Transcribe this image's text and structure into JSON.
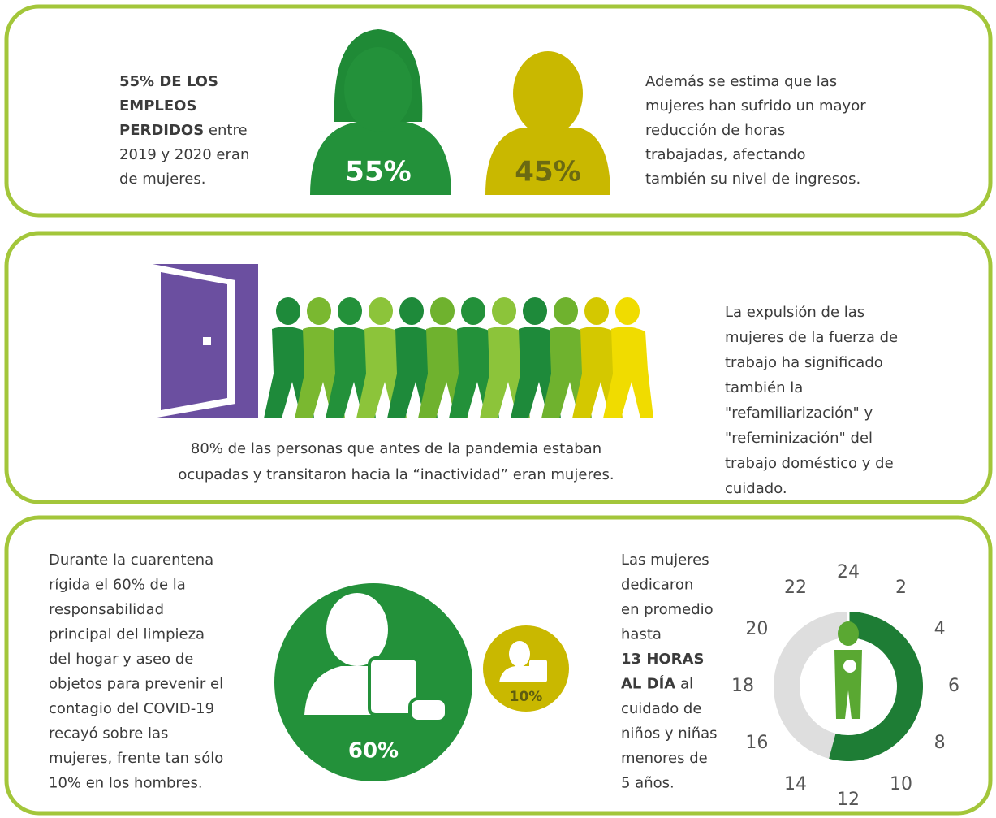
{
  "panel1": {
    "left_text": [
      [
        {
          "bold": "55% DE LOS"
        }
      ],
      [
        {
          "bold": "EMPLEOS"
        }
      ],
      [
        {
          "bold": "PERDIDOS"
        },
        " entre"
      ],
      [
        "2019 y 2020 eran"
      ],
      [
        "de mujeres."
      ]
    ],
    "women_label": "55%",
    "men_label": "45%",
    "right_text": [
      [
        "Además se estima que las"
      ],
      [
        "mujeres han sufrido un mayor"
      ],
      [
        "reducción de horas"
      ],
      [
        "trabajadas, afectando"
      ],
      [
        "también su nivel de ingresos."
      ]
    ]
  },
  "panel2": {
    "caption": [
      [
        "80% de las personas que antes de la pandemia estaban"
      ],
      [
        "ocupadas y transitaron hacia la “inactividad” eran mujeres."
      ]
    ],
    "right_text": [
      [
        "La expulsión de las"
      ],
      [
        "mujeres de la fuerza de"
      ],
      [
        "trabajo ha significado"
      ],
      [
        "también la"
      ],
      [
        "\"refamiliarización\" y"
      ],
      [
        "\"refeminización\" del"
      ],
      [
        "trabajo doméstico y de"
      ],
      [
        "cuidado."
      ]
    ]
  },
  "panel3": {
    "left_text": [
      [
        "Durante la cuarentena"
      ],
      [
        "rígida el 60% de la"
      ],
      [
        "responsabilidad"
      ],
      [
        "principal del limpieza"
      ],
      [
        "del hogar y aseo de"
      ],
      [
        "objetos para prevenir el"
      ],
      [
        "contagio del COVID-19"
      ],
      [
        "recayó sobre las"
      ],
      [
        "mujeres, frente tan sólo"
      ],
      [
        "10% en los hombres."
      ]
    ],
    "women_label": "60%",
    "men_label": "10%",
    "middle_text": [
      [
        "Las mujeres"
      ],
      [
        "dedicaron"
      ],
      [
        "en promedio"
      ],
      [
        "hasta"
      ],
      [
        {
          "bold": "13 HORAS"
        }
      ],
      [
        {
          "bold": "AL DÍA"
        },
        " al"
      ],
      [
        "cuidado de"
      ],
      [
        "niños y niñas"
      ],
      [
        "menores de"
      ],
      [
        "5 años."
      ]
    ],
    "clock_labels": [
      24,
      2,
      4,
      6,
      8,
      10,
      12,
      14,
      16,
      18,
      20,
      22
    ],
    "hours": 13
  }
}
